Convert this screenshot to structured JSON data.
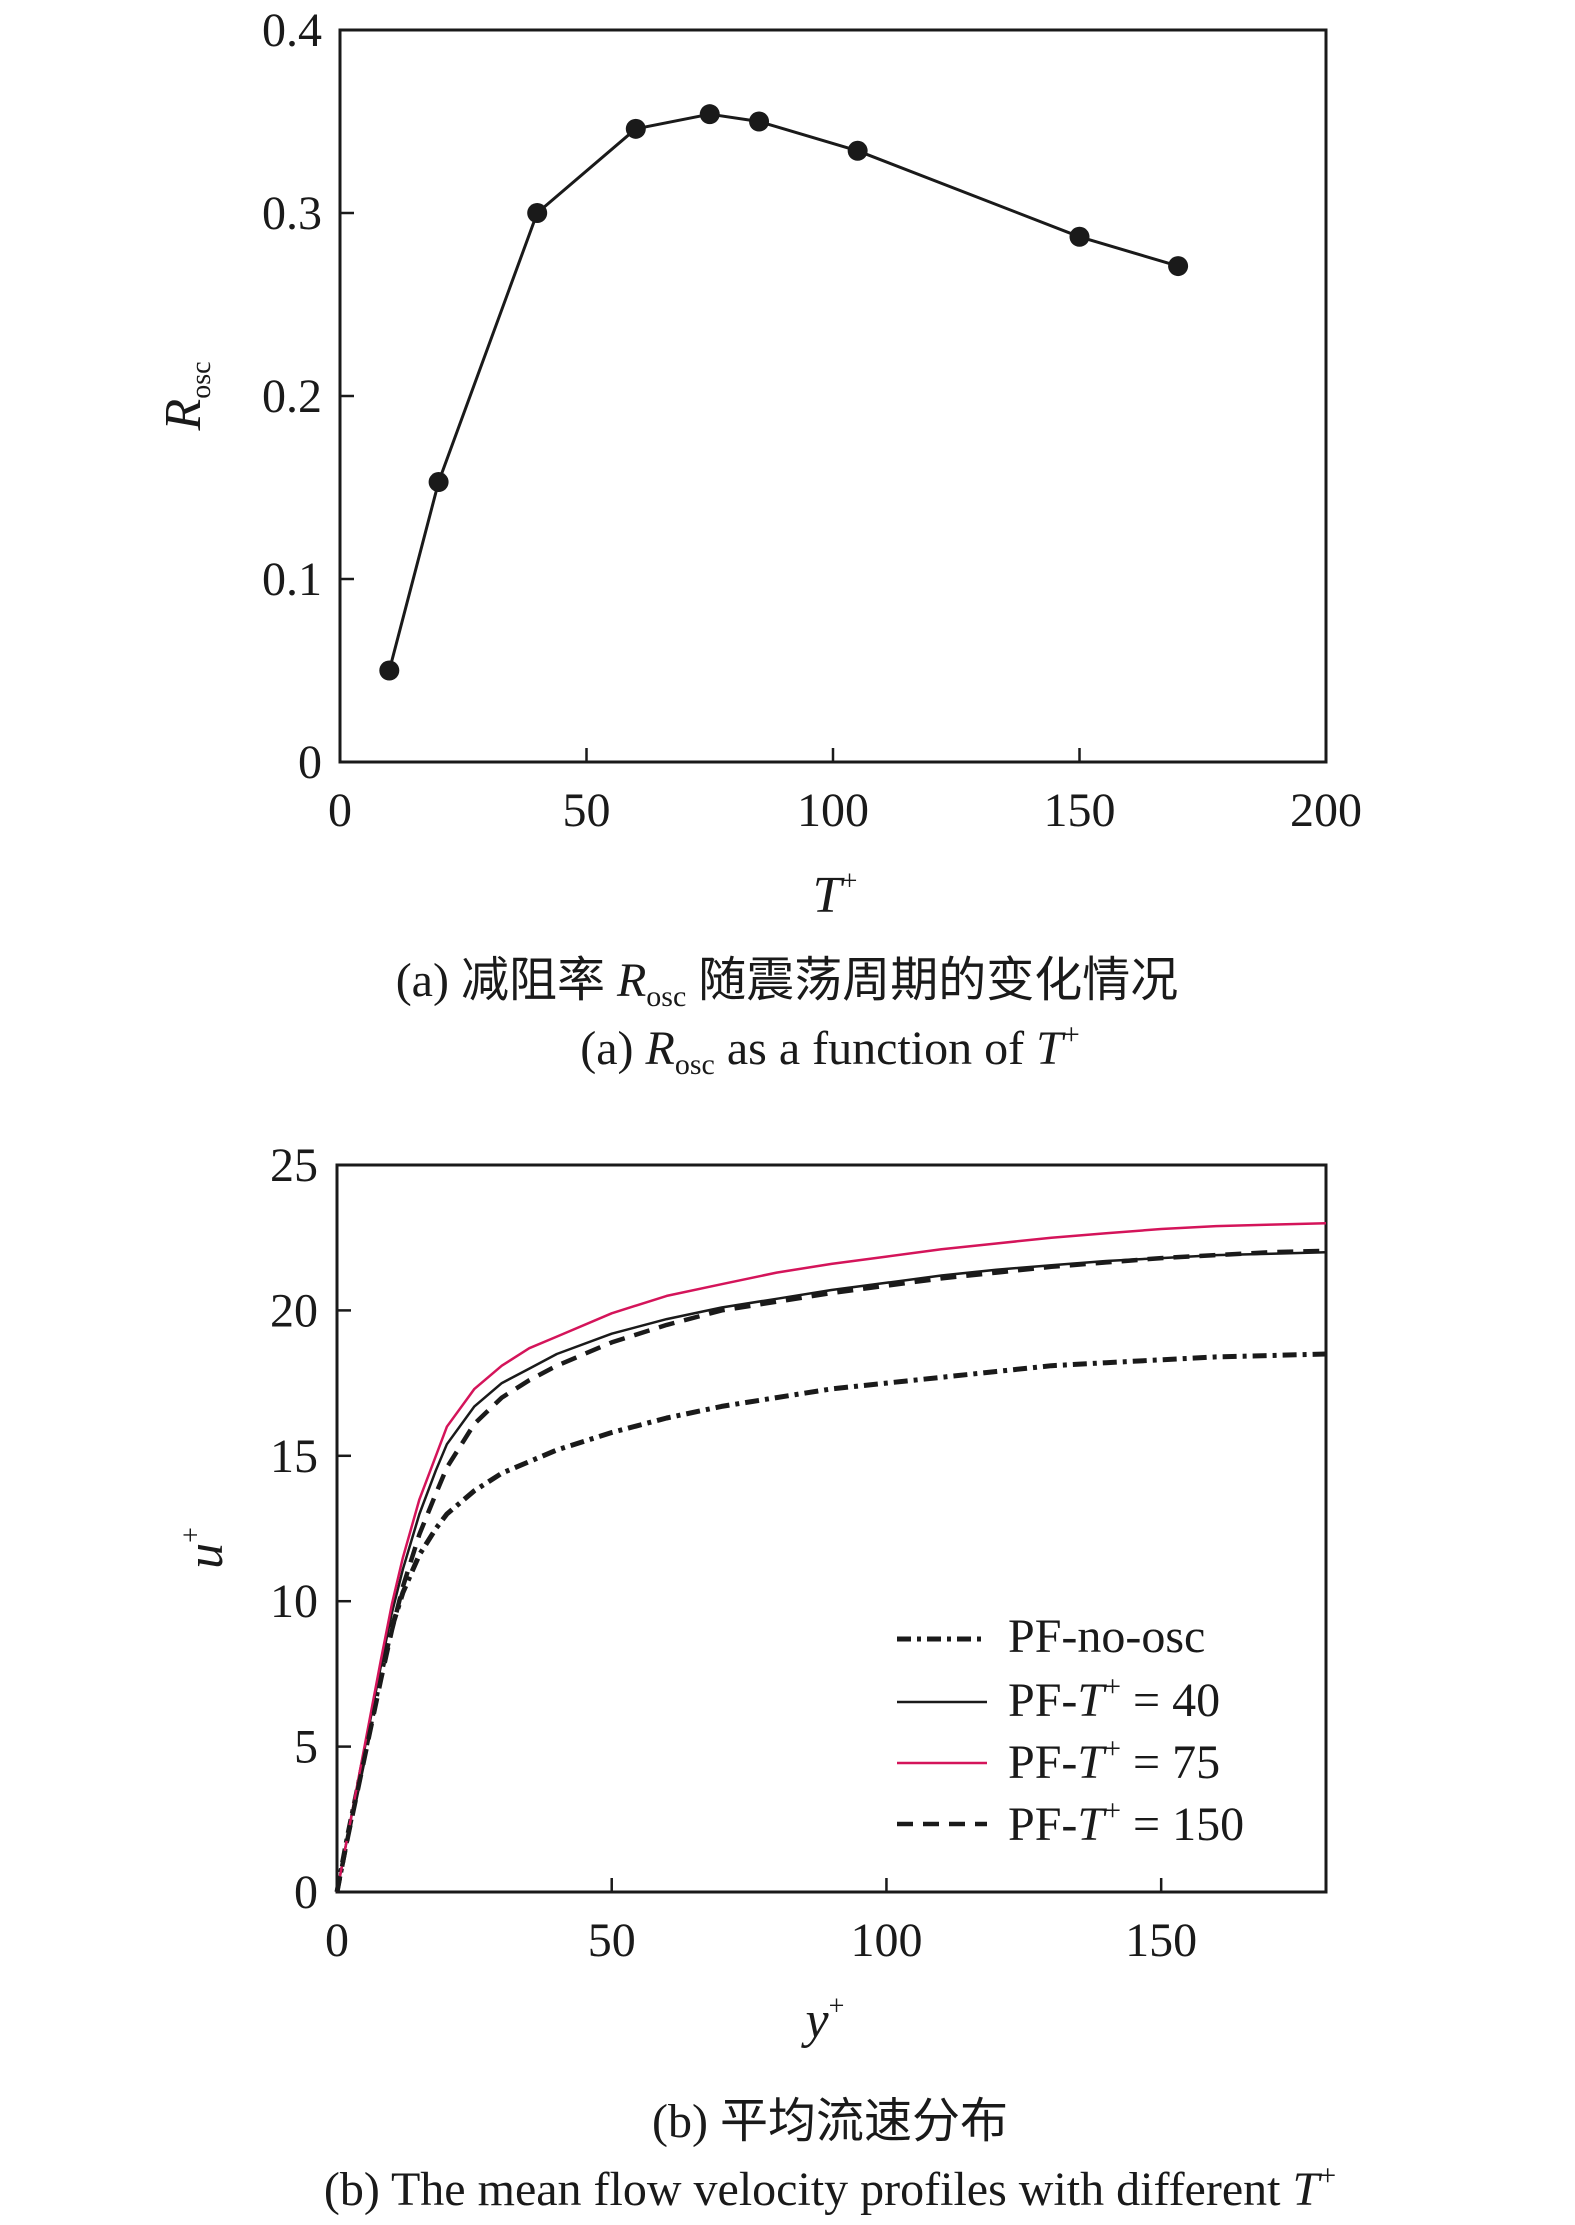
{
  "chart_data": [
    {
      "type": "line",
      "markers": true,
      "x": [
        10,
        20,
        40,
        60,
        75,
        85,
        105,
        150,
        170
      ],
      "series": [
        {
          "values": [
            0.05,
            0.153,
            0.3,
            0.346,
            0.354,
            0.35,
            0.334,
            0.287,
            0.271
          ],
          "color": "#1a1a1a"
        }
      ],
      "xlabel": "T",
      "xlabel_sup": "+",
      "ylabel": "R",
      "ylabel_sub": "osc",
      "xlim": [
        0,
        200
      ],
      "ylim": [
        0,
        0.4
      ],
      "xticks": [
        "0",
        "50",
        "100",
        "150",
        "200"
      ],
      "yticks": [
        "0",
        "0.1",
        "0.2",
        "0.3",
        "0.4"
      ],
      "caption_cn": "(a) 减阻率 R_osc 随震荡周期的变化情况",
      "caption_en": "(a) R_osc as a function of T+"
    },
    {
      "type": "line",
      "x": [
        0,
        2,
        5,
        8,
        10,
        12,
        15,
        18,
        20,
        25,
        30,
        35,
        40,
        50,
        60,
        70,
        80,
        90,
        100,
        110,
        120,
        130,
        140,
        150,
        160,
        170,
        180
      ],
      "series": [
        {
          "name": "PF-no-osc",
          "color": "#1a1a1a",
          "dash": "dashdot",
          "values": [
            0,
            2.0,
            4.7,
            7.5,
            9.1,
            10.3,
            11.6,
            12.5,
            13.0,
            13.8,
            14.4,
            14.8,
            15.2,
            15.8,
            16.3,
            16.7,
            17.0,
            17.3,
            17.5,
            17.7,
            17.9,
            18.1,
            18.2,
            18.3,
            18.4,
            18.45,
            18.5
          ]
        },
        {
          "name": "PF-T+ = 40",
          "color": "#1a1a1a",
          "dash": "solid",
          "values": [
            0,
            2.0,
            4.9,
            7.8,
            9.6,
            11.1,
            13.0,
            14.5,
            15.4,
            16.7,
            17.5,
            18.0,
            18.5,
            19.2,
            19.7,
            20.1,
            20.4,
            20.7,
            20.95,
            21.2,
            21.4,
            21.55,
            21.7,
            21.8,
            21.9,
            21.95,
            22.0
          ]
        },
        {
          "name": "PF-T+ = 75",
          "color": "#d4145a",
          "dash": "solid",
          "values": [
            0,
            2.0,
            5.0,
            8.0,
            9.9,
            11.5,
            13.5,
            15.0,
            16.0,
            17.3,
            18.1,
            18.7,
            19.1,
            19.9,
            20.5,
            20.9,
            21.3,
            21.6,
            21.85,
            22.1,
            22.3,
            22.5,
            22.65,
            22.8,
            22.9,
            22.95,
            23.0
          ]
        },
        {
          "name": "PF-T+ = 150",
          "color": "#1a1a1a",
          "dash": "dashed",
          "values": [
            0,
            1.9,
            4.6,
            7.3,
            9.0,
            10.5,
            12.3,
            13.7,
            14.6,
            16.1,
            17.0,
            17.6,
            18.1,
            18.9,
            19.5,
            20.0,
            20.3,
            20.6,
            20.85,
            21.1,
            21.3,
            21.5,
            21.65,
            21.8,
            21.9,
            22.0,
            22.05
          ]
        }
      ],
      "xlabel": "y",
      "xlabel_sup": "+",
      "ylabel": "u",
      "ylabel_sup": "+",
      "xlim": [
        0,
        180
      ],
      "ylim": [
        0,
        25
      ],
      "xticks": [
        "0",
        "50",
        "100",
        "150"
      ],
      "yticks": [
        "0",
        "5",
        "10",
        "15",
        "20",
        "25"
      ],
      "legend_position": "lower-right",
      "caption_cn": "(b) 平均流速分布",
      "caption_en": "(b) The mean flow velocity profiles with different T+"
    }
  ],
  "text": {
    "a_xlabel": "T",
    "a_xlabel_sup": "+",
    "a_ylabel": "R",
    "a_ylabel_sub": "osc",
    "a_cap_cn_pre": "(a) 减阻率 ",
    "a_cap_cn_R": "R",
    "a_cap_cn_sub": "osc",
    "a_cap_cn_post": " 随震荡周期的变化情况",
    "a_cap_en_pre": "(a) ",
    "a_cap_en_R": "R",
    "a_cap_en_sub": "osc",
    "a_cap_en_mid": " as a function of ",
    "a_cap_en_T": "T",
    "a_cap_en_sup": "+",
    "b_xlabel": "y",
    "b_xlabel_sup": "+",
    "b_ylabel": "u",
    "b_ylabel_sup": "+",
    "b_cap_cn": "(b) 平均流速分布",
    "b_cap_en_pre": "(b) The mean flow velocity profiles with different ",
    "b_cap_en_T": "T",
    "b_cap_en_sup": "+",
    "legend": [
      {
        "pre": "PF-no-osc",
        "T": "",
        "sup": "",
        "post": ""
      },
      {
        "pre": "PF-",
        "T": "T",
        "sup": "+",
        "post": " = 40"
      },
      {
        "pre": "PF-",
        "T": "T",
        "sup": "+",
        "post": " = 75"
      },
      {
        "pre": "PF-",
        "T": "T",
        "sup": "+",
        "post": " = 150"
      }
    ]
  }
}
